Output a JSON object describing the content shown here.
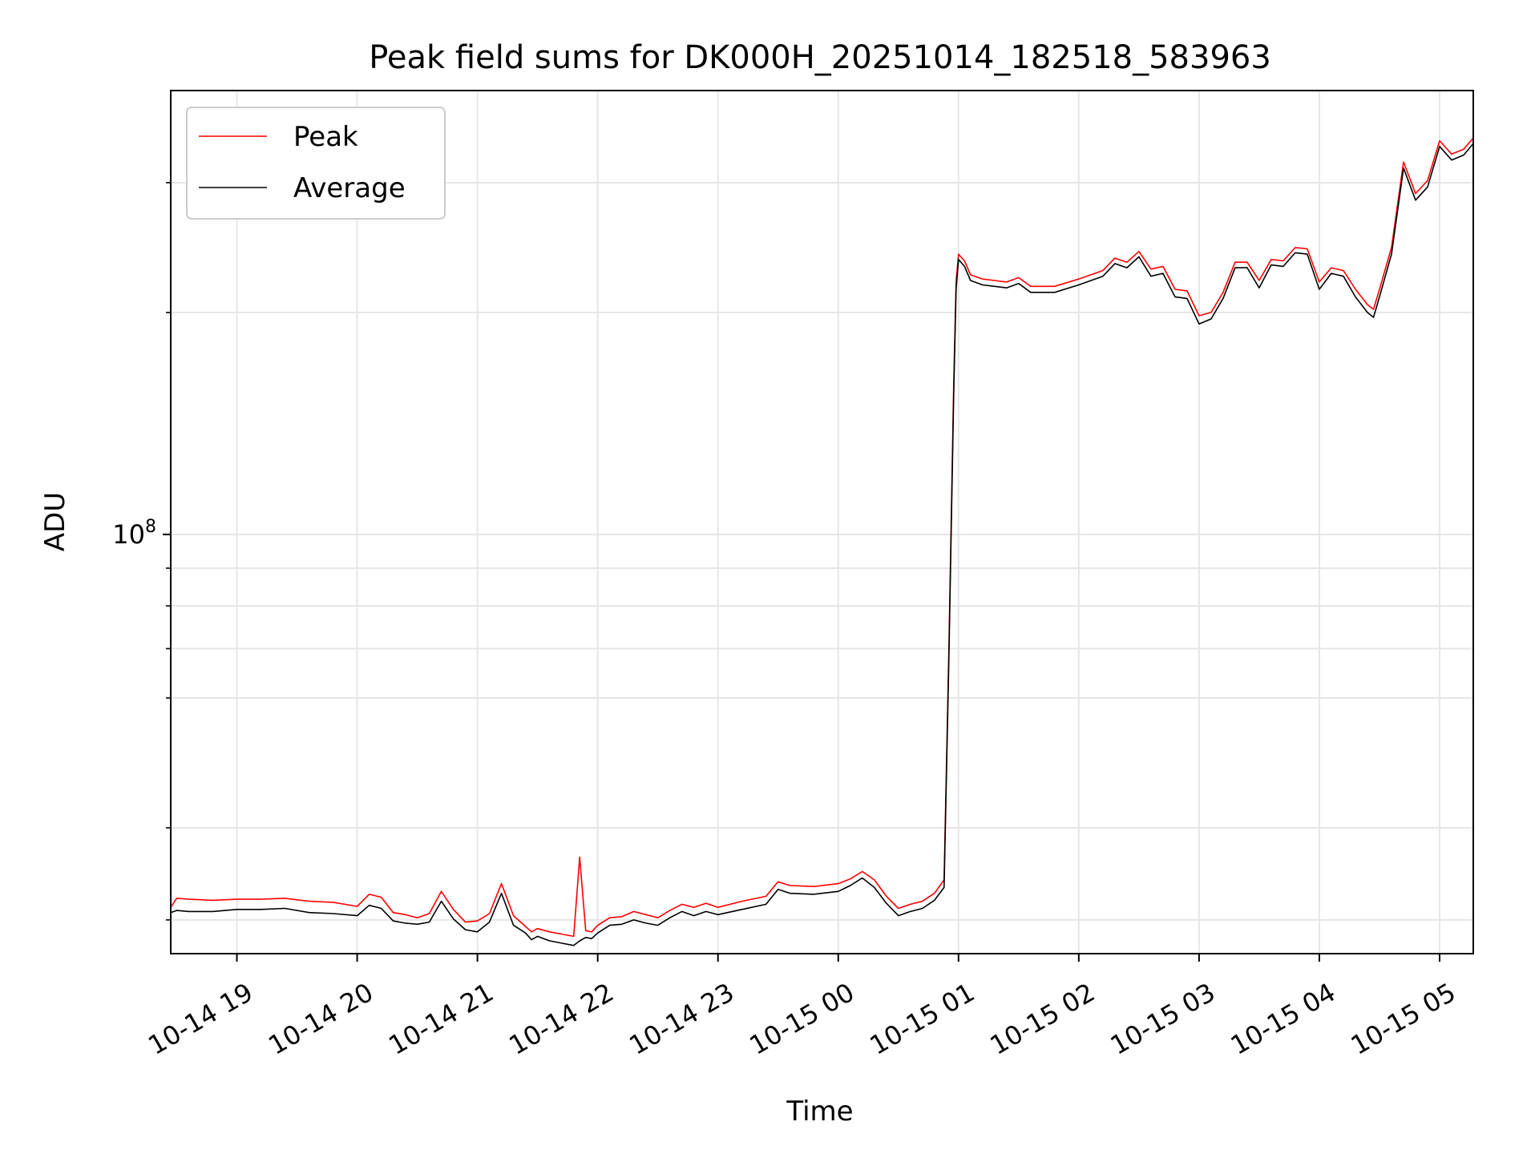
{
  "chart_data": {
    "type": "line",
    "title": "Peak field sums for DK000H_20251014_182518_583963",
    "xlabel": "Time",
    "ylabel": "ADU",
    "yscale": "log",
    "ylim": [
      27000000,
      400000000
    ],
    "xlim_hours": [
      18.45,
      29.28
    ],
    "grid": true,
    "legend_position": "upper-left",
    "x_ticks": [
      {
        "hour": 19,
        "label": "10-14 19"
      },
      {
        "hour": 20,
        "label": "10-14 20"
      },
      {
        "hour": 21,
        "label": "10-14 21"
      },
      {
        "hour": 22,
        "label": "10-14 22"
      },
      {
        "hour": 23,
        "label": "10-14 23"
      },
      {
        "hour": 24,
        "label": "10-15 00"
      },
      {
        "hour": 25,
        "label": "10-15 01"
      },
      {
        "hour": 26,
        "label": "10-15 02"
      },
      {
        "hour": 27,
        "label": "10-15 03"
      },
      {
        "hour": 28,
        "label": "10-15 04"
      },
      {
        "hour": 29,
        "label": "10-15 05"
      }
    ],
    "y_major_ticks": [
      {
        "value": 100000000,
        "label_base": "10",
        "label_exp": "8"
      }
    ],
    "y_minor_ticks": [
      30000000,
      40000000,
      60000000,
      70000000,
      80000000,
      90000000,
      200000000,
      300000000
    ],
    "series": [
      {
        "name": "Peak",
        "color": "#ff0000",
        "hours": [
          18.45,
          18.5,
          18.6,
          18.8,
          19.0,
          19.2,
          19.4,
          19.6,
          19.8,
          20.0,
          20.1,
          20.2,
          20.3,
          20.4,
          20.5,
          20.6,
          20.7,
          20.8,
          20.9,
          21.0,
          21.1,
          21.2,
          21.3,
          21.4,
          21.45,
          21.5,
          21.6,
          21.7,
          21.8,
          21.85,
          21.9,
          21.95,
          22.0,
          22.1,
          22.2,
          22.3,
          22.4,
          22.5,
          22.6,
          22.7,
          22.8,
          22.9,
          23.0,
          23.2,
          23.4,
          23.5,
          23.6,
          23.8,
          24.0,
          24.1,
          24.2,
          24.3,
          24.4,
          24.5,
          24.6,
          24.7,
          24.8,
          24.88,
          24.92,
          24.96,
          24.98,
          25.0,
          25.05,
          25.1,
          25.2,
          25.3,
          25.4,
          25.5,
          25.6,
          25.8,
          26.0,
          26.2,
          26.3,
          26.4,
          26.5,
          26.6,
          26.7,
          26.8,
          26.9,
          27.0,
          27.1,
          27.2,
          27.3,
          27.4,
          27.5,
          27.6,
          27.7,
          27.8,
          27.9,
          28.0,
          28.1,
          28.2,
          28.3,
          28.4,
          28.45,
          28.5,
          28.6,
          28.7,
          28.8,
          28.9,
          29.0,
          29.1,
          29.2,
          29.28
        ],
        "values": [
          31200000,
          32100000,
          32000000,
          31900000,
          32000000,
          32000000,
          32100000,
          31800000,
          31700000,
          31300000,
          32500000,
          32200000,
          30700000,
          30500000,
          30200000,
          30600000,
          32800000,
          31000000,
          29800000,
          29900000,
          30600000,
          33600000,
          30400000,
          29400000,
          28900000,
          29200000,
          28900000,
          28700000,
          28500000,
          36500000,
          29000000,
          28900000,
          29500000,
          30200000,
          30300000,
          30800000,
          30500000,
          30200000,
          30900000,
          31500000,
          31200000,
          31600000,
          31200000,
          31800000,
          32300000,
          33800000,
          33400000,
          33300000,
          33600000,
          34100000,
          34900000,
          34000000,
          32300000,
          31100000,
          31500000,
          31800000,
          32600000,
          34000000,
          70000000,
          160000000,
          220000000,
          240000000,
          235000000,
          225000000,
          222000000,
          221000000,
          220000000,
          223000000,
          217000000,
          217000000,
          222000000,
          228000000,
          237000000,
          234000000,
          242000000,
          229000000,
          231000000,
          215000000,
          214000000,
          198000000,
          200000000,
          213000000,
          234000000,
          234000000,
          221000000,
          236000000,
          235000000,
          245000000,
          244000000,
          220000000,
          230000000,
          228000000,
          215000000,
          205000000,
          202000000,
          215000000,
          245000000,
          320000000,
          290000000,
          302000000,
          342000000,
          328000000,
          333000000,
          345000000
        ]
      },
      {
        "name": "Average",
        "color": "#000000",
        "hours": [
          18.45,
          18.5,
          18.6,
          18.8,
          19.0,
          19.2,
          19.4,
          19.6,
          19.8,
          20.0,
          20.1,
          20.2,
          20.3,
          20.4,
          20.5,
          20.6,
          20.7,
          20.8,
          20.9,
          21.0,
          21.1,
          21.2,
          21.3,
          21.4,
          21.45,
          21.5,
          21.6,
          21.7,
          21.8,
          21.85,
          21.9,
          21.95,
          22.0,
          22.1,
          22.2,
          22.3,
          22.4,
          22.5,
          22.6,
          22.7,
          22.8,
          22.9,
          23.0,
          23.2,
          23.4,
          23.5,
          23.6,
          23.8,
          24.0,
          24.1,
          24.2,
          24.3,
          24.4,
          24.5,
          24.6,
          24.7,
          24.8,
          24.88,
          24.92,
          24.96,
          24.98,
          25.0,
          25.05,
          25.1,
          25.2,
          25.3,
          25.4,
          25.5,
          25.6,
          25.8,
          26.0,
          26.2,
          26.3,
          26.4,
          26.5,
          26.6,
          26.7,
          26.8,
          26.9,
          27.0,
          27.1,
          27.2,
          27.3,
          27.4,
          27.5,
          27.6,
          27.7,
          27.8,
          27.9,
          28.0,
          28.1,
          28.2,
          28.3,
          28.4,
          28.45,
          28.5,
          28.6,
          28.7,
          28.8,
          28.9,
          29.0,
          29.1,
          29.2,
          29.28
        ],
        "values": [
          30700000,
          30900000,
          30800000,
          30800000,
          31000000,
          31000000,
          31100000,
          30700000,
          30600000,
          30400000,
          31400000,
          31100000,
          29900000,
          29700000,
          29600000,
          29800000,
          31800000,
          30100000,
          29100000,
          28900000,
          29800000,
          32600000,
          29500000,
          28800000,
          28200000,
          28500000,
          28100000,
          27900000,
          27700000,
          28100000,
          28400000,
          28300000,
          28800000,
          29500000,
          29600000,
          30000000,
          29700000,
          29500000,
          30200000,
          30800000,
          30400000,
          30800000,
          30500000,
          31000000,
          31500000,
          33000000,
          32600000,
          32500000,
          32800000,
          33400000,
          34200000,
          33200000,
          31600000,
          30400000,
          30800000,
          31100000,
          31900000,
          33200000,
          68000000,
          155000000,
          215000000,
          236000000,
          231000000,
          221000000,
          218000000,
          217000000,
          216000000,
          219000000,
          213000000,
          213000000,
          218000000,
          224000000,
          233000000,
          230000000,
          238000000,
          224000000,
          226000000,
          210000000,
          209000000,
          193000000,
          196000000,
          209000000,
          230000000,
          230000000,
          216000000,
          232000000,
          231000000,
          241000000,
          240000000,
          215000000,
          226000000,
          224000000,
          210000000,
          200000000,
          197000000,
          210000000,
          240000000,
          314000000,
          284000000,
          296000000,
          336000000,
          322000000,
          327000000,
          339000000
        ]
      }
    ]
  }
}
